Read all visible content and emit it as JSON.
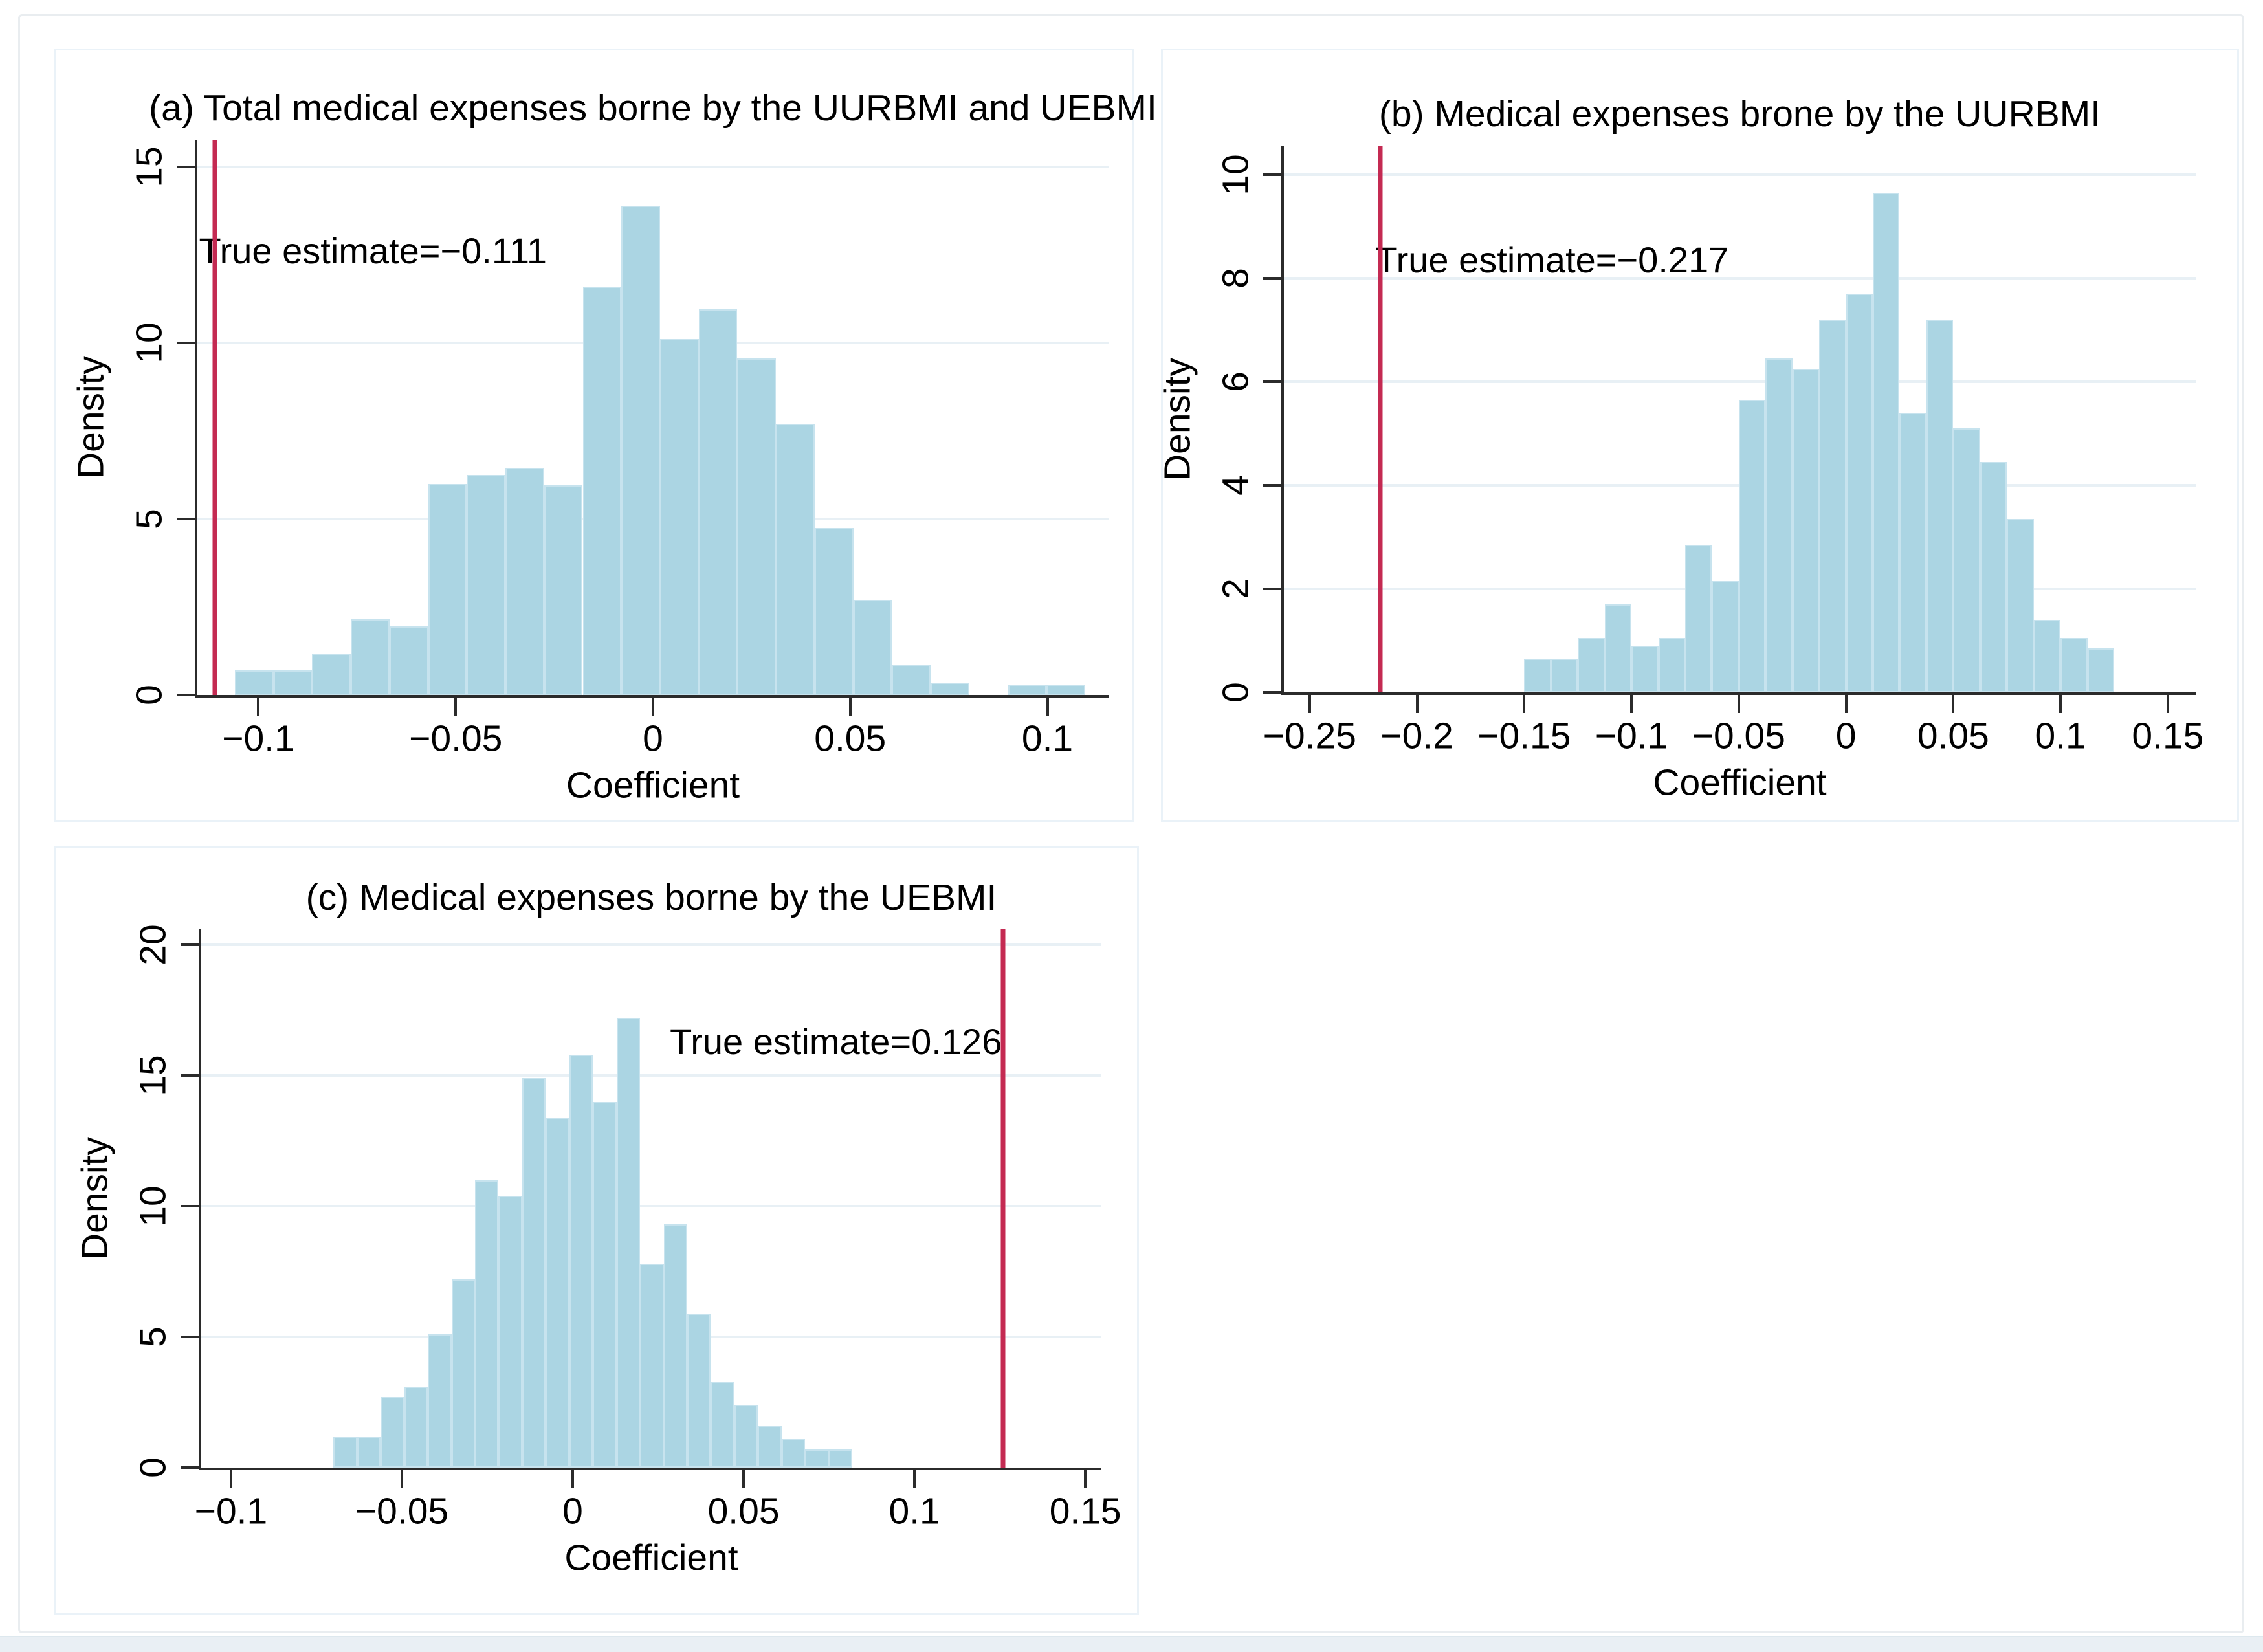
{
  "figure": {
    "colors": {
      "bar_fill": "#abd5e3",
      "bar_edge": "#c7e3ee",
      "true_line": "#c42a52",
      "gridline": "#e8f0f5",
      "axis": "#2b2b2b",
      "panel_border": "#eaf2f8",
      "frame_border": "#e9edf0",
      "bottom_strip": "#e9eff4",
      "text": "#000000"
    }
  },
  "chart_data": [
    {
      "id": "a",
      "type": "bar",
      "title": "(a) Total medical expenses borne by the UURBMI and UEBMI",
      "xlabel": "Coefficient",
      "ylabel": "Density",
      "annotation_text": "True estimate=−0.111",
      "true_estimate": -0.111,
      "annotation_pos": {
        "x": -0.071,
        "y": 12.6
      },
      "bin_start": -0.106,
      "bin_width": 0.0098,
      "values": [
        0.7,
        0.7,
        1.15,
        2.15,
        1.95,
        6.0,
        6.25,
        6.45,
        5.95,
        11.6,
        13.9,
        10.1,
        10.95,
        9.55,
        7.7,
        4.75,
        2.7,
        0.85,
        0.35,
        0,
        0.3,
        0.3
      ],
      "xticks": [
        -0.1,
        -0.05,
        0,
        0.05,
        0.1
      ],
      "xtick_labels": [
        "−0.1",
        "−0.05",
        "0",
        "0.05",
        "0.1"
      ],
      "yticks": [
        0,
        5,
        10,
        15
      ],
      "ytick_labels": [
        "0",
        "5",
        "10",
        "15"
      ],
      "xlim": [
        -0.1155,
        0.1155
      ],
      "ylim": [
        0,
        15.77
      ],
      "grid": true,
      "legend": "none"
    },
    {
      "id": "b",
      "type": "bar",
      "title": "(b) Medical expenses brone by the UURBMI",
      "xlabel": "Coefficient",
      "ylabel": "Density",
      "annotation_text": "True estimate=−0.217",
      "true_estimate": -0.217,
      "annotation_pos": {
        "x": -0.137,
        "y": 8.35
      },
      "bin_start": -0.15,
      "bin_width": 0.0125,
      "values": [
        0.65,
        0.65,
        1.05,
        1.7,
        0.9,
        1.05,
        2.85,
        2.15,
        5.65,
        6.45,
        6.25,
        7.2,
        7.7,
        9.65,
        5.4,
        7.2,
        5.1,
        4.45,
        3.35,
        1.4,
        1.05,
        0.85
      ],
      "xticks": [
        -0.25,
        -0.2,
        -0.15,
        -0.1,
        -0.05,
        0,
        0.05,
        0.1,
        0.15
      ],
      "xtick_labels": [
        "−0.25",
        "−0.2",
        "−0.15",
        "−0.1",
        "−0.05",
        "0",
        "0.05",
        "0.1",
        "0.15"
      ],
      "yticks": [
        0,
        2,
        4,
        6,
        8,
        10
      ],
      "ytick_labels": [
        "0",
        "2",
        "4",
        "6",
        "8",
        "10"
      ],
      "xlim": [
        -0.262,
        0.163
      ],
      "ylim": [
        0,
        10.56
      ],
      "grid": true,
      "legend": "none"
    },
    {
      "id": "c",
      "type": "bar",
      "title": "(c) Medical expenses borne by the UEBMI",
      "xlabel": "Coefficient",
      "ylabel": "Density",
      "annotation_text": "True estimate=0.126",
      "true_estimate": 0.126,
      "annotation_pos": {
        "x": 0.077,
        "y": 16.3
      },
      "bin_start": -0.07,
      "bin_width": 0.0069,
      "values": [
        1.2,
        1.2,
        2.7,
        3.1,
        5.1,
        7.2,
        11.0,
        10.4,
        14.9,
        13.4,
        15.8,
        14.0,
        17.2,
        7.8,
        9.3,
        5.9,
        3.3,
        2.4,
        1.6,
        1.1,
        0.7,
        0.7
      ],
      "xticks": [
        -0.1,
        -0.05,
        0,
        0.05,
        0.1,
        0.15
      ],
      "xtick_labels": [
        "−0.1",
        "−0.05",
        "0",
        "0.05",
        "0.1",
        "0.15"
      ],
      "yticks": [
        0,
        5,
        10,
        15,
        20
      ],
      "ytick_labels": [
        "0",
        "5",
        "10",
        "15",
        "20"
      ],
      "xlim": [
        -0.1087,
        0.1547
      ],
      "ylim": [
        0,
        20.6
      ],
      "grid": true,
      "legend": "none"
    }
  ]
}
